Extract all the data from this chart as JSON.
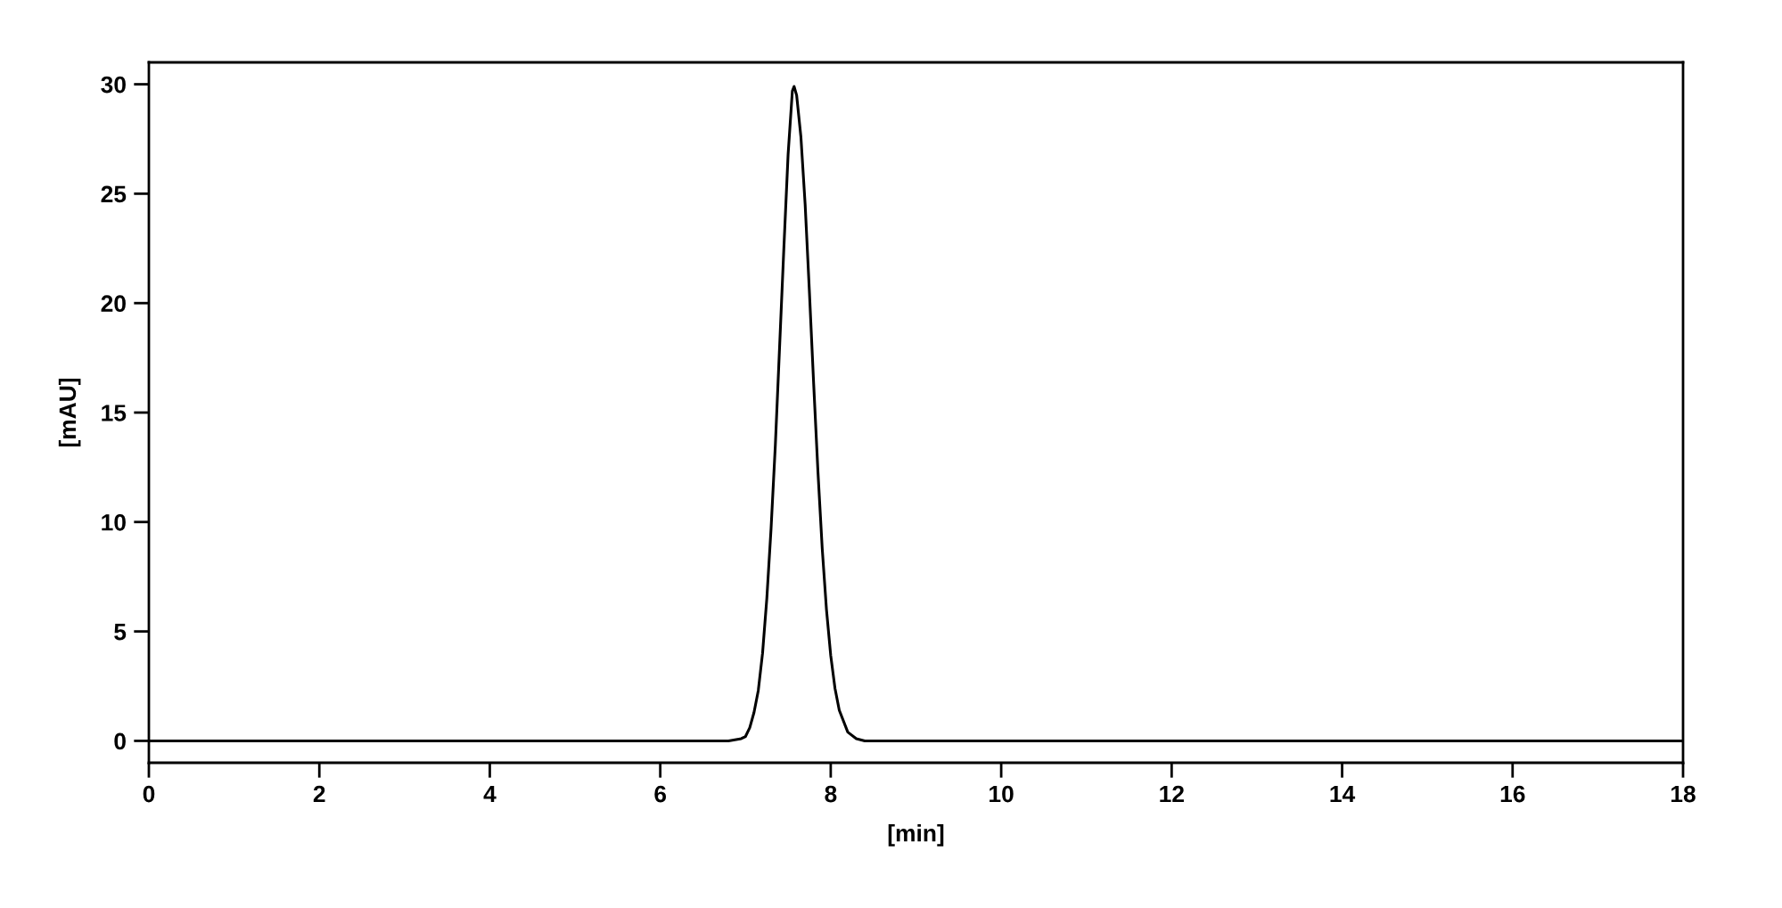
{
  "chart_data": {
    "type": "line",
    "xlabel": "[min]",
    "ylabel": "[mAU]",
    "xlim": [
      0,
      18
    ],
    "ylim": [
      -1,
      31
    ],
    "xticks": [
      0,
      2,
      4,
      6,
      8,
      10,
      12,
      14,
      16,
      18
    ],
    "yticks": [
      0,
      5,
      10,
      15,
      20,
      25,
      30
    ],
    "grid": false,
    "marker": "none",
    "line_style": "solid",
    "series": [
      {
        "color": "#000000",
        "x": [
          0,
          6.8,
          6.95,
          7.0,
          7.05,
          7.1,
          7.15,
          7.2,
          7.25,
          7.3,
          7.35,
          7.4,
          7.45,
          7.5,
          7.55,
          7.57,
          7.6,
          7.65,
          7.7,
          7.75,
          7.8,
          7.85,
          7.9,
          7.95,
          8.0,
          8.05,
          8.1,
          8.2,
          8.3,
          8.4,
          18
        ],
        "values": [
          0,
          0,
          0.1,
          0.2,
          0.6,
          1.3,
          2.3,
          4.0,
          6.5,
          9.7,
          13.5,
          18.0,
          22.5,
          26.8,
          29.7,
          29.9,
          29.5,
          27.6,
          24.5,
          20.5,
          16.3,
          12.3,
          8.8,
          6.0,
          3.9,
          2.4,
          1.4,
          0.4,
          0.1,
          0,
          0
        ]
      }
    ]
  }
}
